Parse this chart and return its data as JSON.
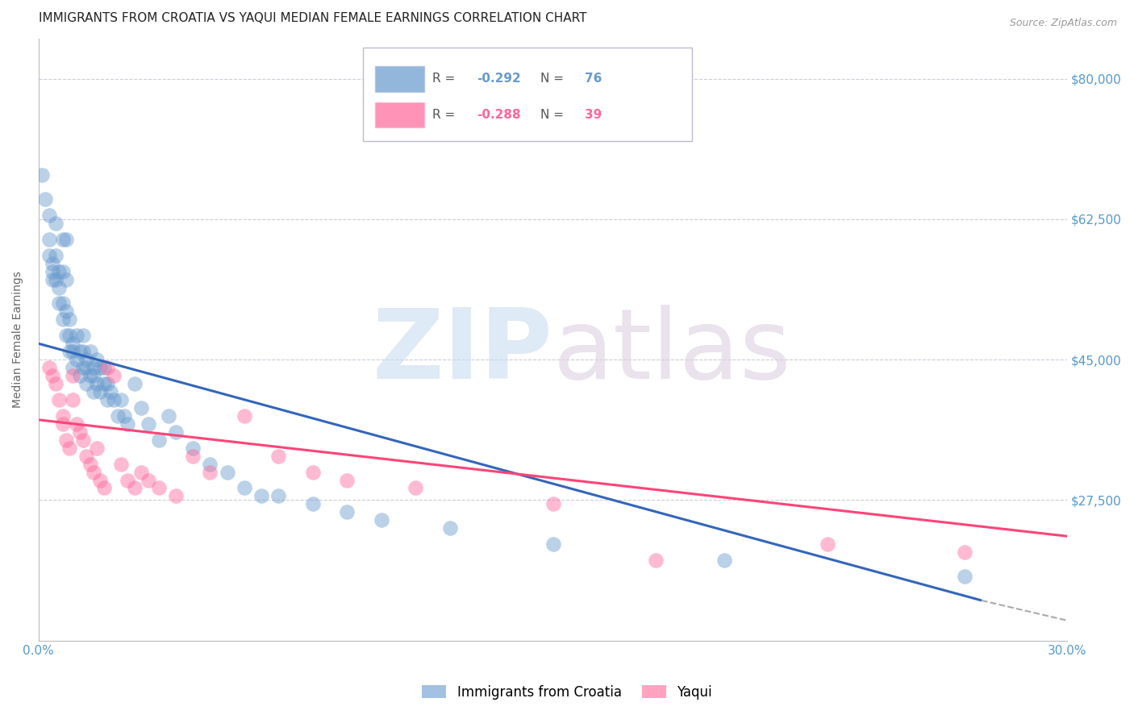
{
  "title": "IMMIGRANTS FROM CROATIA VS YAQUI MEDIAN FEMALE EARNINGS CORRELATION CHART",
  "source": "Source: ZipAtlas.com",
  "ylabel": "Median Female Earnings",
  "xlim": [
    0.0,
    0.3
  ],
  "ylim": [
    10000,
    85000
  ],
  "yticks": [
    27500,
    45000,
    62500,
    80000
  ],
  "ytick_labels": [
    "$27,500",
    "$45,000",
    "$62,500",
    "$80,000"
  ],
  "xticks": [
    0.0,
    0.05,
    0.1,
    0.15,
    0.2,
    0.25,
    0.3
  ],
  "xtick_labels": [
    "0.0%",
    "",
    "",
    "",
    "",
    "",
    "30.0%"
  ],
  "blue_R": -0.292,
  "blue_N": 76,
  "pink_R": -0.288,
  "pink_N": 39,
  "blue_color": "#6699CC",
  "pink_color": "#FF6699",
  "blue_line_color": "#3366BB",
  "pink_line_color": "#FF4477",
  "blue_label": "Immigrants from Croatia",
  "pink_label": "Yaqui",
  "axis_color": "#5599CC",
  "background_color": "#FFFFFF",
  "grid_color": "#CCCCDD",
  "blue_line_x0": 0.0,
  "blue_line_y0": 47000,
  "blue_line_x1_solid": 0.275,
  "blue_line_y1_solid": 15000,
  "blue_line_x1_dash": 0.3,
  "blue_line_y1_dash": 12500,
  "pink_line_x0": 0.0,
  "pink_line_y0": 37500,
  "pink_line_x1": 0.3,
  "pink_line_y1": 23000,
  "blue_scatter_x": [
    0.001,
    0.002,
    0.003,
    0.003,
    0.003,
    0.004,
    0.004,
    0.004,
    0.005,
    0.005,
    0.005,
    0.006,
    0.006,
    0.006,
    0.007,
    0.007,
    0.007,
    0.007,
    0.008,
    0.008,
    0.008,
    0.008,
    0.009,
    0.009,
    0.009,
    0.01,
    0.01,
    0.01,
    0.011,
    0.011,
    0.012,
    0.012,
    0.013,
    0.013,
    0.013,
    0.014,
    0.014,
    0.014,
    0.015,
    0.015,
    0.016,
    0.016,
    0.016,
    0.017,
    0.017,
    0.018,
    0.018,
    0.019,
    0.019,
    0.02,
    0.02,
    0.021,
    0.022,
    0.023,
    0.024,
    0.025,
    0.026,
    0.028,
    0.03,
    0.032,
    0.035,
    0.038,
    0.04,
    0.045,
    0.05,
    0.055,
    0.06,
    0.065,
    0.07,
    0.08,
    0.09,
    0.1,
    0.12,
    0.15,
    0.2,
    0.27
  ],
  "blue_scatter_y": [
    68000,
    65000,
    63000,
    60000,
    58000,
    57000,
    56000,
    55000,
    62000,
    58000,
    55000,
    56000,
    54000,
    52000,
    60000,
    56000,
    52000,
    50000,
    60000,
    55000,
    51000,
    48000,
    50000,
    48000,
    46000,
    47000,
    46000,
    44000,
    48000,
    45000,
    46000,
    43000,
    48000,
    46000,
    44000,
    45000,
    44000,
    42000,
    46000,
    43000,
    44000,
    43000,
    41000,
    45000,
    42000,
    44000,
    41000,
    42000,
    44000,
    42000,
    40000,
    41000,
    40000,
    38000,
    40000,
    38000,
    37000,
    42000,
    39000,
    37000,
    35000,
    38000,
    36000,
    34000,
    32000,
    31000,
    29000,
    28000,
    28000,
    27000,
    26000,
    25000,
    24000,
    22000,
    20000,
    18000
  ],
  "pink_scatter_x": [
    0.003,
    0.004,
    0.005,
    0.006,
    0.007,
    0.007,
    0.008,
    0.009,
    0.01,
    0.01,
    0.011,
    0.012,
    0.013,
    0.014,
    0.015,
    0.016,
    0.017,
    0.018,
    0.019,
    0.02,
    0.022,
    0.024,
    0.026,
    0.028,
    0.03,
    0.032,
    0.035,
    0.04,
    0.045,
    0.05,
    0.06,
    0.07,
    0.08,
    0.09,
    0.11,
    0.15,
    0.18,
    0.23,
    0.27
  ],
  "pink_scatter_y": [
    44000,
    43000,
    42000,
    40000,
    38000,
    37000,
    35000,
    34000,
    43000,
    40000,
    37000,
    36000,
    35000,
    33000,
    32000,
    31000,
    34000,
    30000,
    29000,
    44000,
    43000,
    32000,
    30000,
    29000,
    31000,
    30000,
    29000,
    28000,
    33000,
    31000,
    38000,
    33000,
    31000,
    30000,
    29000,
    27000,
    20000,
    22000,
    21000
  ],
  "source_fontsize": 9,
  "tick_fontsize": 11,
  "title_fontsize": 11,
  "axis_label_fontsize": 10,
  "legend_fontsize": 11
}
